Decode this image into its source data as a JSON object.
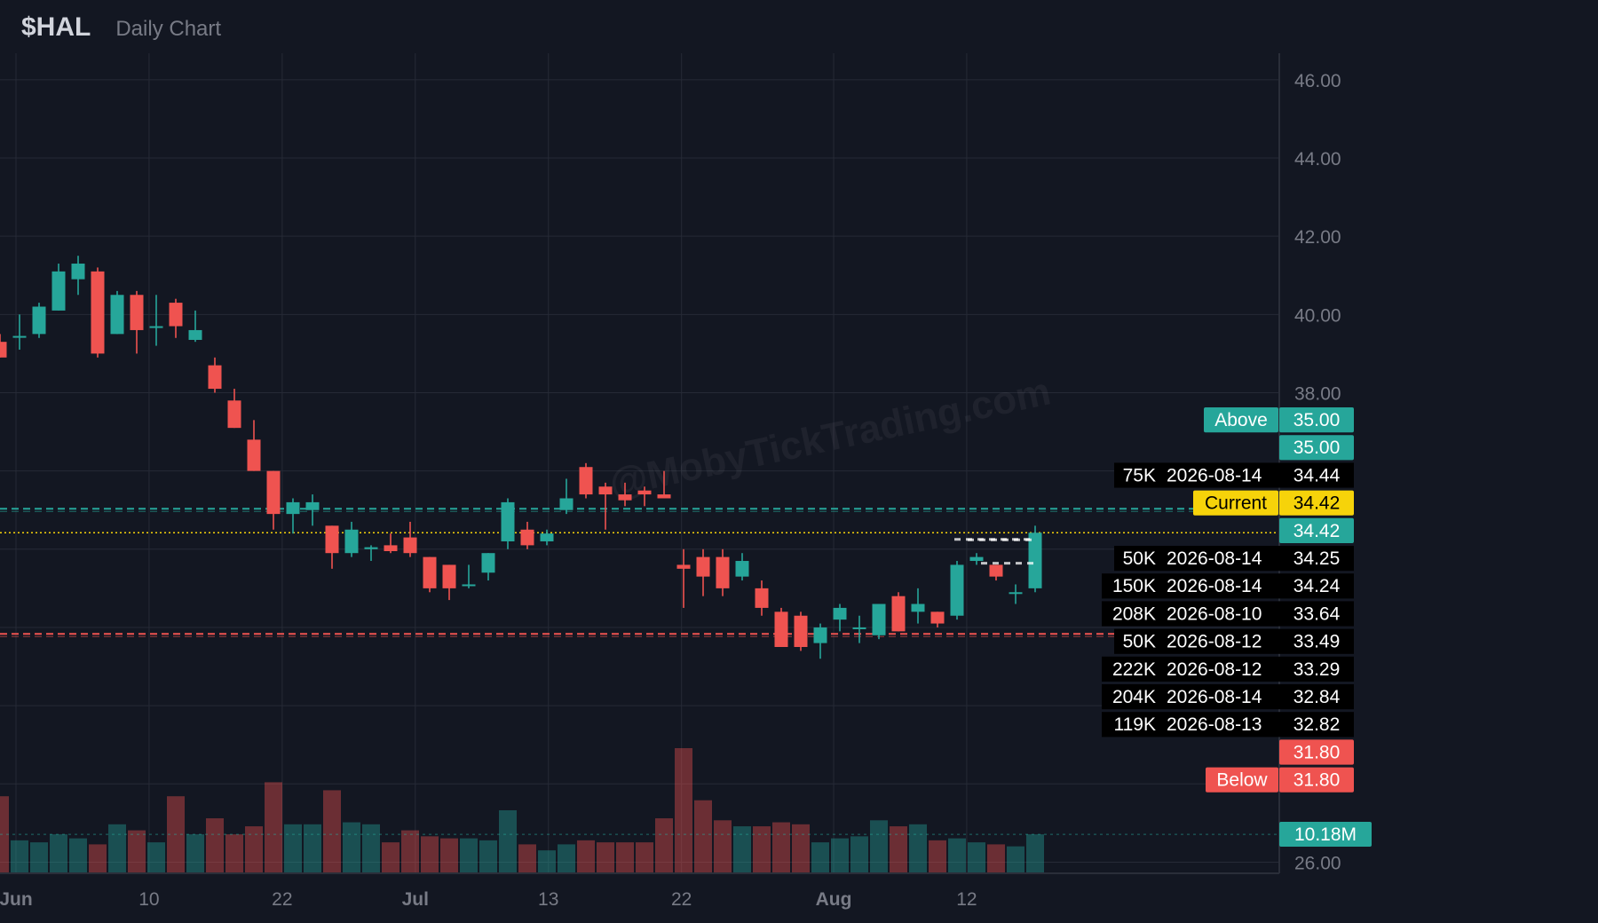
{
  "header": {
    "symbol": "$HAL",
    "subtitle": "Daily Chart"
  },
  "watermark": "@MobyTickTrading.com",
  "colors": {
    "up": "#26a69a",
    "down": "#ef5350",
    "current": "#f6d30a",
    "bg": "#131722",
    "grid": "#262a36",
    "axis_text": "#787b86"
  },
  "chart_data": {
    "type": "candlestick",
    "y_axis": {
      "min": 26,
      "max": 46,
      "ticks": [
        "46.00",
        "44.00",
        "42.00",
        "40.00",
        "38.00",
        "26.00"
      ]
    },
    "x_axis": {
      "ticks": [
        {
          "label": "Jun",
          "day": 0
        },
        {
          "label": "10",
          "day": 7
        },
        {
          "label": "22",
          "day": 14
        },
        {
          "label": "Jul",
          "day": 21
        },
        {
          "label": "13",
          "day": 28
        },
        {
          "label": "22",
          "day": 35
        },
        {
          "label": "Aug",
          "day": 43
        },
        {
          "label": "12",
          "day": 50
        }
      ]
    },
    "candles": [
      {
        "o": 39.3,
        "h": 39.5,
        "l": 38.9,
        "c": 38.9
      },
      {
        "o": 39.45,
        "h": 40.0,
        "l": 39.1,
        "c": 39.45
      },
      {
        "o": 39.5,
        "h": 40.3,
        "l": 39.4,
        "c": 40.2
      },
      {
        "o": 40.1,
        "h": 41.3,
        "l": 40.1,
        "c": 41.1
      },
      {
        "o": 40.9,
        "h": 41.5,
        "l": 40.5,
        "c": 41.3
      },
      {
        "o": 41.1,
        "h": 41.2,
        "l": 38.9,
        "c": 39.0
      },
      {
        "o": 39.5,
        "h": 40.6,
        "l": 39.5,
        "c": 40.5
      },
      {
        "o": 40.5,
        "h": 40.6,
        "l": 39.0,
        "c": 39.6
      },
      {
        "o": 39.7,
        "h": 40.5,
        "l": 39.2,
        "c": 39.7
      },
      {
        "o": 40.3,
        "h": 40.4,
        "l": 39.4,
        "c": 39.7
      },
      {
        "o": 39.35,
        "h": 40.1,
        "l": 39.3,
        "c": 39.6
      },
      {
        "o": 38.7,
        "h": 38.9,
        "l": 38.0,
        "c": 38.1
      },
      {
        "o": 37.8,
        "h": 38.1,
        "l": 37.1,
        "c": 37.1
      },
      {
        "o": 36.8,
        "h": 37.3,
        "l": 36.0,
        "c": 36.0
      },
      {
        "o": 36.0,
        "h": 36.0,
        "l": 34.5,
        "c": 34.9
      },
      {
        "o": 34.9,
        "h": 35.3,
        "l": 34.4,
        "c": 35.2
      },
      {
        "o": 35.0,
        "h": 35.4,
        "l": 34.6,
        "c": 35.2
      },
      {
        "o": 34.6,
        "h": 34.6,
        "l": 33.5,
        "c": 33.9
      },
      {
        "o": 33.9,
        "h": 34.7,
        "l": 33.8,
        "c": 34.5
      },
      {
        "o": 34.0,
        "h": 34.1,
        "l": 33.7,
        "c": 34.05
      },
      {
        "o": 34.1,
        "h": 34.4,
        "l": 33.9,
        "c": 33.95
      },
      {
        "o": 34.3,
        "h": 34.7,
        "l": 33.8,
        "c": 33.9
      },
      {
        "o": 33.8,
        "h": 33.8,
        "l": 32.9,
        "c": 33.0
      },
      {
        "o": 33.6,
        "h": 33.6,
        "l": 32.7,
        "c": 33.0
      },
      {
        "o": 33.1,
        "h": 33.6,
        "l": 33.0,
        "c": 33.1
      },
      {
        "o": 33.4,
        "h": 33.9,
        "l": 33.2,
        "c": 33.9
      },
      {
        "o": 34.2,
        "h": 35.3,
        "l": 34.0,
        "c": 35.2
      },
      {
        "o": 34.5,
        "h": 34.7,
        "l": 34.0,
        "c": 34.1
      },
      {
        "o": 34.2,
        "h": 34.5,
        "l": 34.1,
        "c": 34.4
      },
      {
        "o": 35.0,
        "h": 35.8,
        "l": 34.9,
        "c": 35.3
      },
      {
        "o": 36.1,
        "h": 36.2,
        "l": 35.3,
        "c": 35.4
      },
      {
        "o": 35.6,
        "h": 35.7,
        "l": 34.5,
        "c": 35.4
      },
      {
        "o": 35.4,
        "h": 35.7,
        "l": 35.1,
        "c": 35.25
      },
      {
        "o": 35.5,
        "h": 35.6,
        "l": 35.1,
        "c": 35.4
      },
      {
        "o": 35.4,
        "h": 36.0,
        "l": 35.3,
        "c": 35.3
      },
      {
        "o": 33.6,
        "h": 34.0,
        "l": 32.5,
        "c": 33.5
      },
      {
        "o": 33.8,
        "h": 34.0,
        "l": 32.8,
        "c": 33.3
      },
      {
        "o": 33.8,
        "h": 34.0,
        "l": 32.8,
        "c": 33.0
      },
      {
        "o": 33.3,
        "h": 33.9,
        "l": 33.2,
        "c": 33.7
      },
      {
        "o": 33.0,
        "h": 33.2,
        "l": 32.3,
        "c": 32.5
      },
      {
        "o": 32.4,
        "h": 32.5,
        "l": 31.5,
        "c": 31.5
      },
      {
        "o": 32.3,
        "h": 32.4,
        "l": 31.4,
        "c": 31.5
      },
      {
        "o": 31.6,
        "h": 32.1,
        "l": 31.2,
        "c": 32.0
      },
      {
        "o": 32.2,
        "h": 32.6,
        "l": 31.9,
        "c": 32.5
      },
      {
        "o": 32.0,
        "h": 32.3,
        "l": 31.6,
        "c": 32.0
      },
      {
        "o": 31.8,
        "h": 32.6,
        "l": 31.7,
        "c": 32.6
      },
      {
        "o": 32.8,
        "h": 32.9,
        "l": 31.9,
        "c": 31.9
      },
      {
        "o": 32.4,
        "h": 33.0,
        "l": 32.1,
        "c": 32.6
      },
      {
        "o": 32.4,
        "h": 32.4,
        "l": 32.0,
        "c": 32.1
      },
      {
        "o": 32.3,
        "h": 33.7,
        "l": 32.2,
        "c": 33.6
      },
      {
        "o": 33.7,
        "h": 33.9,
        "l": 33.6,
        "c": 33.8
      },
      {
        "o": 33.6,
        "h": 33.6,
        "l": 33.2,
        "c": 33.3
      },
      {
        "o": 32.9,
        "h": 33.1,
        "l": 32.6,
        "c": 32.9
      },
      {
        "o": 33.0,
        "h": 34.6,
        "l": 32.9,
        "c": 34.42
      }
    ],
    "volume": [
      1.9,
      0.8,
      0.75,
      0.95,
      0.85,
      0.7,
      1.2,
      1.05,
      0.75,
      1.9,
      0.95,
      1.35,
      0.95,
      1.15,
      2.25,
      1.2,
      1.2,
      2.05,
      1.25,
      1.2,
      0.75,
      1.05,
      0.9,
      0.85,
      0.85,
      0.8,
      1.55,
      0.7,
      0.55,
      0.7,
      0.8,
      0.75,
      0.75,
      0.75,
      1.35,
      3.1,
      1.8,
      1.3,
      1.15,
      1.15,
      1.25,
      1.2,
      0.75,
      0.85,
      0.9,
      1.3,
      1.15,
      1.2,
      0.8,
      0.85,
      0.75,
      0.7,
      0.65,
      0.95
    ],
    "volume_max": 3.1,
    "levels": [
      {
        "label": "Above",
        "price": 35.0,
        "style": "dashed",
        "color": "#26a69a"
      },
      {
        "label": "Current",
        "price": 34.42,
        "style": "dotted",
        "color": "#f6d30a"
      },
      {
        "label": "Below",
        "price": 31.8,
        "style": "dashed",
        "color": "#ef5350"
      }
    ],
    "axis_tags": [
      {
        "text": "35.00",
        "color": "#26a69a"
      },
      {
        "text": "34.44",
        "color": "#000000"
      },
      {
        "text": "34.42",
        "color": "#26a69a"
      },
      {
        "text": "34.25",
        "color": "#000000"
      },
      {
        "text": "34.24",
        "color": "#000000"
      },
      {
        "text": "33.64",
        "color": "#000000"
      },
      {
        "text": "33.49",
        "color": "#000000"
      },
      {
        "text": "33.29",
        "color": "#000000"
      },
      {
        "text": "32.84",
        "color": "#000000"
      },
      {
        "text": "32.82",
        "color": "#000000"
      },
      {
        "text": "31.80",
        "color": "#ef5350"
      }
    ],
    "volume_tag": "10.18M",
    "flow_table": [
      {
        "size": "75K",
        "date": "2026-08-14",
        "price": "34.44"
      },
      {
        "size": "50K",
        "date": "2026-08-14",
        "price": "34.25"
      },
      {
        "size": "150K",
        "date": "2026-08-14",
        "price": "34.24"
      },
      {
        "size": "208K",
        "date": "2026-08-10",
        "price": "33.64"
      },
      {
        "size": "50K",
        "date": "2026-08-12",
        "price": "33.49"
      },
      {
        "size": "222K",
        "date": "2026-08-12",
        "price": "33.29"
      },
      {
        "size": "204K",
        "date": "2026-08-14",
        "price": "32.84"
      },
      {
        "size": "119K",
        "date": "2026-08-13",
        "price": "32.82"
      }
    ],
    "flow_price_marks": [
      34.25,
      34.24,
      33.64
    ]
  }
}
